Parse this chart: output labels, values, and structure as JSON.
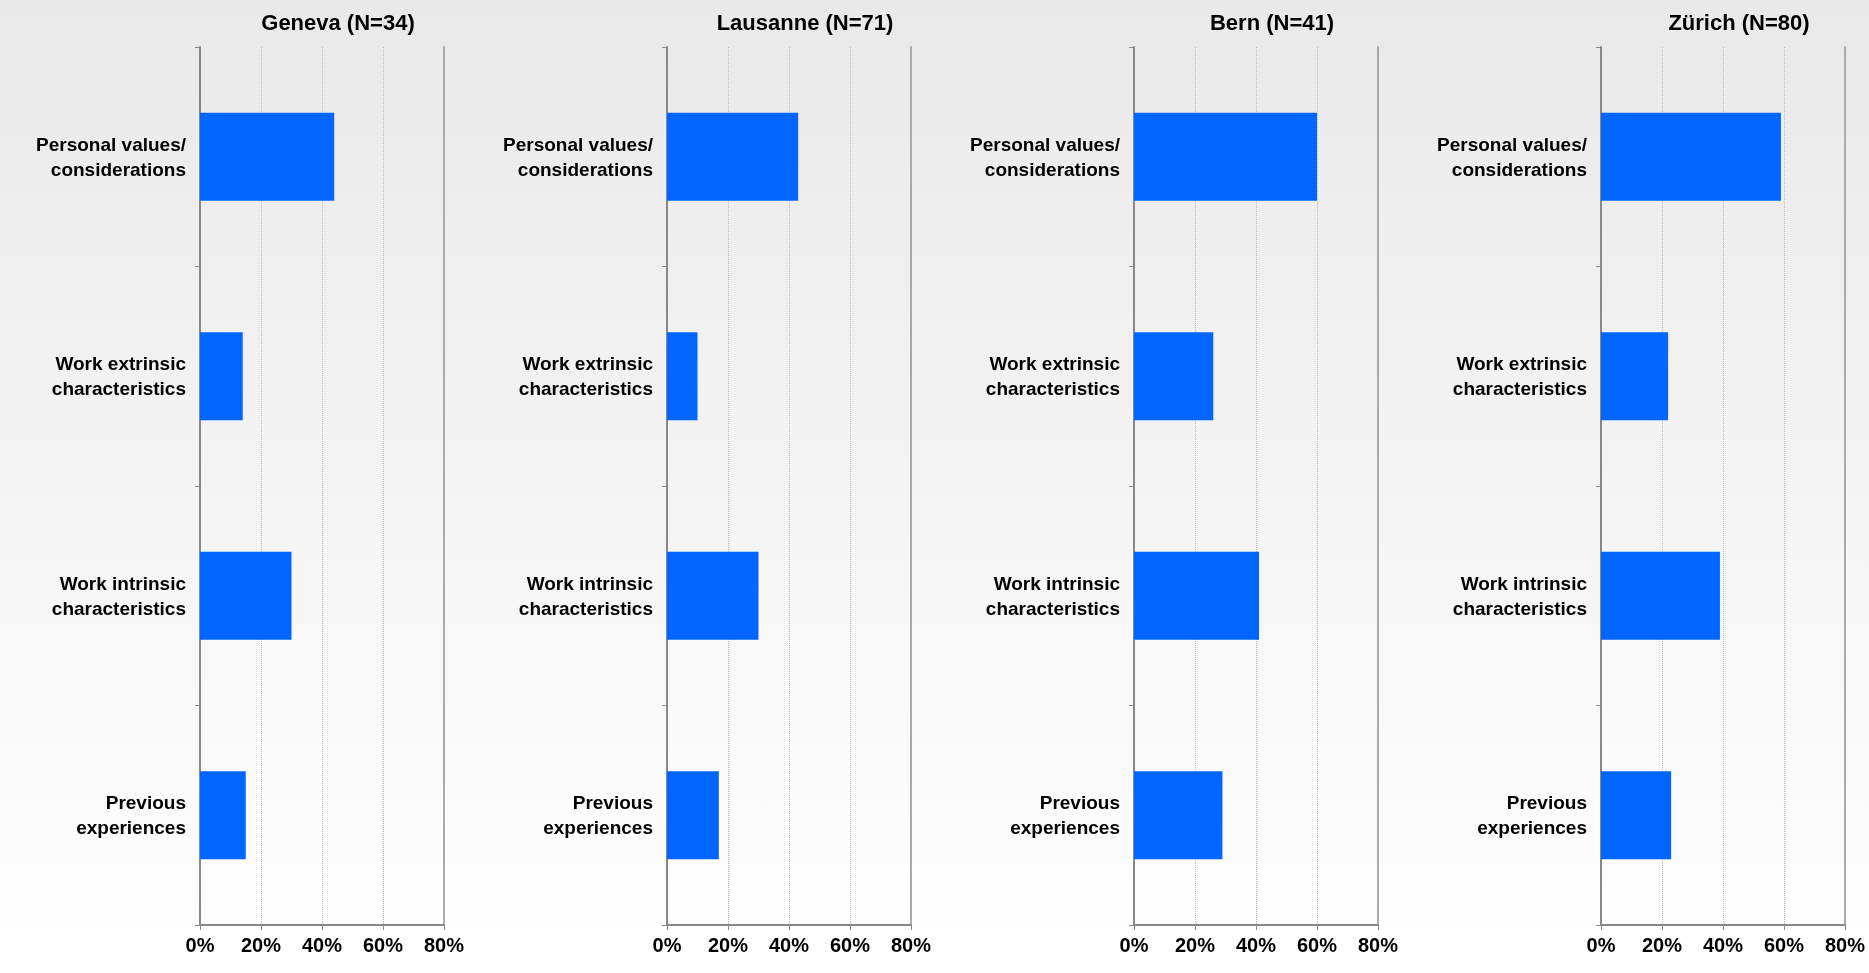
{
  "chart_data": [
    {
      "type": "bar",
      "orientation": "horizontal",
      "title": "Geneva (N=34)",
      "categories": [
        "Personal values/\nconsiderations",
        "Work extrinsic\ncharacteristics",
        "Work intrinsic\ncharacteristics",
        "Previous\nexperiences"
      ],
      "values": [
        44,
        14,
        30,
        15
      ],
      "color": "#0066ff",
      "xlim": [
        0,
        80
      ],
      "xticks": [
        {
          "value": 0,
          "label": "0%"
        },
        {
          "value": 20,
          "label": "20%"
        },
        {
          "value": 40,
          "label": "40%"
        },
        {
          "value": 60,
          "label": "60%"
        },
        {
          "value": 80,
          "label": "80%"
        }
      ],
      "grid": "x"
    },
    {
      "type": "bar",
      "orientation": "horizontal",
      "title": "Lausanne (N=71)",
      "categories": [
        "Personal values/\nconsiderations",
        "Work extrinsic\ncharacteristics",
        "Work intrinsic\ncharacteristics",
        "Previous\nexperiences"
      ],
      "values": [
        43,
        10,
        30,
        17
      ],
      "color": "#0066ff",
      "xlim": [
        0,
        80
      ],
      "xticks": [
        {
          "value": 0,
          "label": "0%"
        },
        {
          "value": 20,
          "label": "20%"
        },
        {
          "value": 40,
          "label": "40%"
        },
        {
          "value": 60,
          "label": "60%"
        },
        {
          "value": 80,
          "label": "80%"
        }
      ],
      "grid": "x"
    },
    {
      "type": "bar",
      "orientation": "horizontal",
      "title": "Bern (N=41)",
      "categories": [
        "Personal values/\nconsiderations",
        "Work extrinsic\ncharacteristics",
        "Work intrinsic\ncharacteristics",
        "Previous\nexperiences"
      ],
      "values": [
        60,
        26,
        41,
        29
      ],
      "color": "#0066ff",
      "xlim": [
        0,
        80
      ],
      "xticks": [
        {
          "value": 0,
          "label": "0%"
        },
        {
          "value": 20,
          "label": "20%"
        },
        {
          "value": 40,
          "label": "40%"
        },
        {
          "value": 60,
          "label": "60%"
        },
        {
          "value": 80,
          "label": "80%"
        }
      ],
      "grid": "x"
    },
    {
      "type": "bar",
      "orientation": "horizontal",
      "title": "Zürich (N=80)",
      "categories": [
        "Personal values/\nconsiderations",
        "Work extrinsic\ncharacteristics",
        "Work intrinsic\ncharacteristics",
        "Previous\nexperiences"
      ],
      "values": [
        59,
        22,
        39,
        23
      ],
      "color": "#0066ff",
      "xlim": [
        0,
        80
      ],
      "xticks": [
        {
          "value": 0,
          "label": "0%"
        },
        {
          "value": 20,
          "label": "20%"
        },
        {
          "value": 40,
          "label": "40%"
        },
        {
          "value": 60,
          "label": "60%"
        },
        {
          "value": 80,
          "label": "80%"
        }
      ],
      "grid": "x"
    }
  ]
}
